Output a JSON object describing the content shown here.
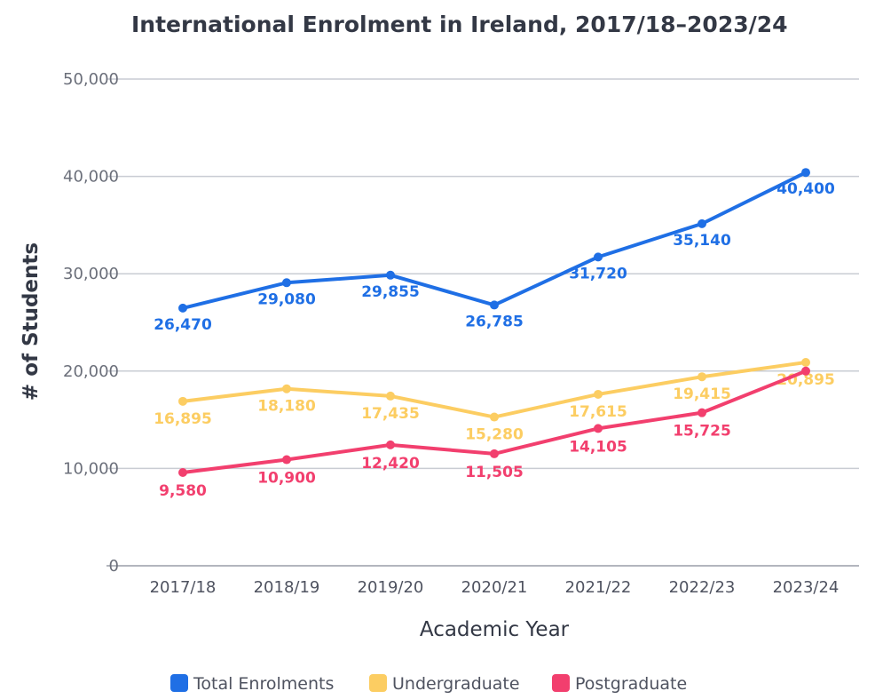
{
  "chart_data": {
    "type": "line",
    "title": "International Enrolment in Ireland, 2017/18–2023/24",
    "xlabel": "Academic Year",
    "ylabel": "# of Students",
    "categories": [
      "2017/18",
      "2018/19",
      "2019/20",
      "2020/21",
      "2021/22",
      "2022/23",
      "2023/24"
    ],
    "ylim": [
      0,
      50000
    ],
    "yticks": [
      0,
      10000,
      20000,
      30000,
      40000,
      50000
    ],
    "ytick_labels": [
      "0",
      "10,000",
      "20,000",
      "30,000",
      "40,000",
      "50,000"
    ],
    "grid": true,
    "legend_position": "bottom-center",
    "series": [
      {
        "name": "Total Enrolments",
        "color": "#1f6fe5",
        "values": [
          26470,
          29080,
          29855,
          26785,
          31720,
          35140,
          40400
        ],
        "labels": [
          "26,470",
          "29,080",
          "29,855",
          "26,785",
          "31,720",
          "35,140",
          "40,400"
        ]
      },
      {
        "name": "Undergraduate",
        "color": "#fccd62",
        "values": [
          16895,
          18180,
          17435,
          15280,
          17615,
          19415,
          20895
        ],
        "labels": [
          "16,895",
          "18,180",
          "17,435",
          "15,280",
          "17,615",
          "19,415",
          "20,895"
        ]
      },
      {
        "name": "Postgraduate",
        "color": "#f23f6e",
        "values": [
          9580,
          10900,
          12420,
          11505,
          14105,
          15725,
          20000
        ],
        "labels": [
          "9,580",
          "10,900",
          "12,420",
          "11,505",
          "14,105",
          "15,725",
          ""
        ]
      }
    ]
  }
}
